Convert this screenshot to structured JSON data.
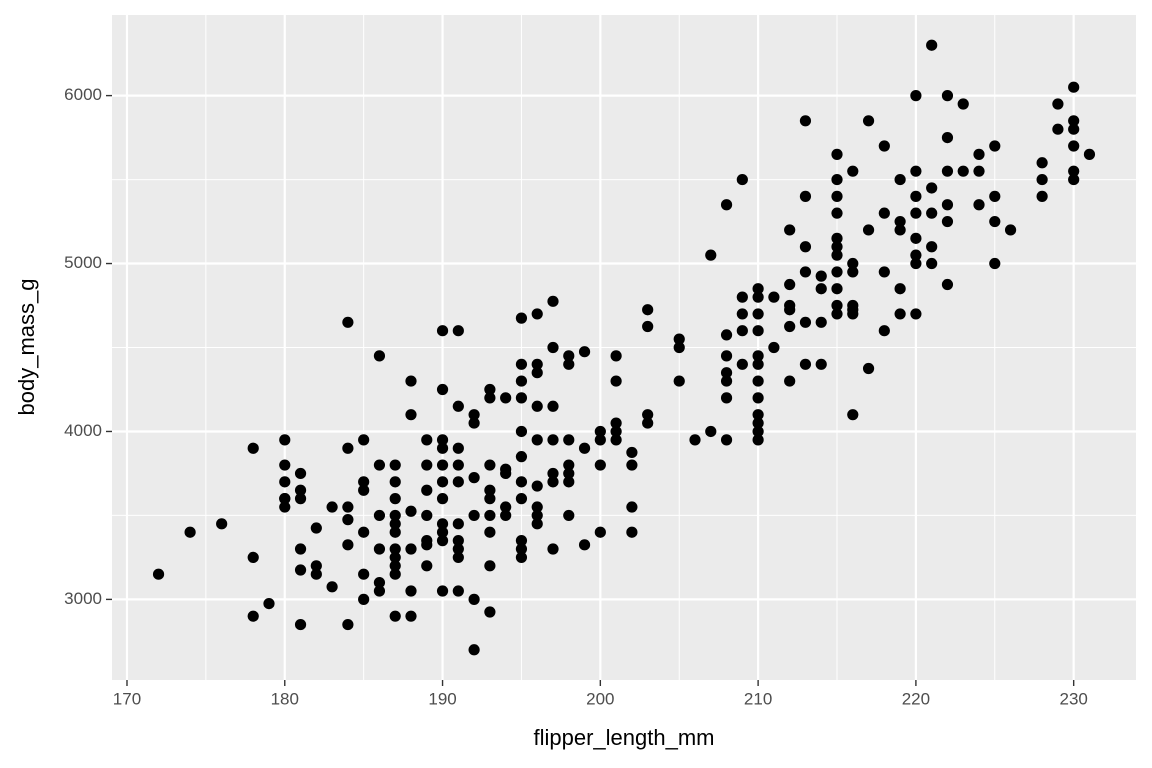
{
  "chart_data": {
    "type": "scatter",
    "xlabel": "flipper_length_mm",
    "ylabel": "body_mass_g",
    "xlim": [
      169.05,
      233.95
    ],
    "ylim": [
      2520,
      6480
    ],
    "xticks": [
      170,
      180,
      190,
      200,
      210,
      220,
      230
    ],
    "yticks": [
      3000,
      4000,
      5000,
      6000
    ],
    "xminor": [
      175,
      185,
      195,
      205,
      215,
      225
    ],
    "yminor": [
      3500,
      4500,
      5500
    ],
    "grid": true,
    "color": "#000000",
    "background": "#ebebeb",
    "x": [
      172,
      174,
      176,
      178,
      178,
      178,
      179,
      180,
      180,
      180,
      180,
      180,
      180,
      181,
      181,
      181,
      181,
      181,
      181,
      182,
      182,
      182,
      183,
      183,
      184,
      184,
      184,
      184,
      184,
      184,
      185,
      185,
      185,
      185,
      185,
      185,
      186,
      186,
      186,
      186,
      186,
      186,
      187,
      187,
      187,
      187,
      187,
      187,
      187,
      187,
      187,
      187,
      187,
      188,
      188,
      188,
      188,
      188,
      188,
      189,
      189,
      189,
      189,
      189,
      189,
      189,
      190,
      190,
      190,
      190,
      190,
      190,
      190,
      190,
      190,
      190,
      190,
      191,
      191,
      191,
      191,
      191,
      191,
      191,
      191,
      191,
      191,
      192,
      192,
      192,
      192,
      192,
      192,
      193,
      193,
      193,
      193,
      193,
      193,
      193,
      193,
      193,
      194,
      194,
      194,
      194,
      194,
      195,
      195,
      195,
      195,
      195,
      195,
      195,
      195,
      195,
      195,
      195,
      196,
      196,
      196,
      196,
      196,
      196,
      196,
      196,
      196,
      197,
      197,
      197,
      197,
      197,
      197,
      197,
      198,
      198,
      198,
      198,
      198,
      198,
      198,
      199,
      199,
      199,
      200,
      200,
      200,
      200,
      201,
      201,
      201,
      201,
      201,
      202,
      202,
      202,
      202,
      203,
      203,
      203,
      203,
      205,
      205,
      205,
      206,
      207,
      207,
      208,
      208,
      208,
      208,
      208,
      208,
      208,
      209,
      209,
      209,
      209,
      209,
      210,
      210,
      210,
      210,
      210,
      210,
      210,
      210,
      210,
      210,
      210,
      210,
      211,
      211,
      212,
      212,
      212,
      212,
      212,
      212,
      213,
      213,
      213,
      213,
      213,
      213,
      214,
      214,
      214,
      214,
      215,
      215,
      215,
      215,
      215,
      215,
      215,
      215,
      215,
      215,
      215,
      216,
      216,
      216,
      216,
      216,
      216,
      216,
      217,
      217,
      217,
      218,
      218,
      218,
      218,
      219,
      219,
      219,
      219,
      219,
      220,
      220,
      220,
      220,
      220,
      220,
      220,
      220,
      221,
      221,
      221,
      221,
      221,
      222,
      222,
      222,
      222,
      222,
      222,
      223,
      223,
      224,
      224,
      224,
      225,
      225,
      225,
      225,
      226,
      228,
      228,
      228,
      229,
      229,
      230,
      230,
      230,
      230,
      230,
      230,
      231
    ],
    "values": [
      3150,
      3400,
      3450,
      3900,
      3250,
      2900,
      2975,
      3950,
      3800,
      3700,
      3600,
      3550,
      3600,
      3750,
      3650,
      3600,
      3300,
      3175,
      2850,
      3425,
      3200,
      3150,
      3075,
      3550,
      4650,
      3900,
      3550,
      3475,
      3325,
      2850,
      3950,
      3700,
      3650,
      3400,
      3150,
      3000,
      4450,
      3800,
      3500,
      3300,
      3100,
      3050,
      3800,
      3700,
      3600,
      3500,
      3450,
      3400,
      3300,
      3250,
      3200,
      3150,
      2900,
      4300,
      4100,
      3525,
      3300,
      3050,
      2900,
      3950,
      3800,
      3650,
      3500,
      3350,
      3325,
      3200,
      4600,
      4250,
      3950,
      3900,
      3800,
      3700,
      3600,
      3450,
      3400,
      3350,
      3050,
      4600,
      4150,
      3900,
      3800,
      3700,
      3450,
      3350,
      3300,
      3250,
      3050,
      4100,
      4050,
      3725,
      3500,
      3000,
      2700,
      4250,
      4200,
      3800,
      3650,
      3600,
      3500,
      3400,
      3200,
      2925,
      4200,
      3775,
      3750,
      3550,
      3500,
      4675,
      4400,
      4300,
      4200,
      4000,
      3850,
      3700,
      3600,
      3350,
      3300,
      3250,
      4700,
      4400,
      4350,
      4150,
      3950,
      3675,
      3550,
      3500,
      3450,
      4775,
      4500,
      4150,
      3950,
      3750,
      3700,
      3300,
      4450,
      4400,
      3950,
      3800,
      3750,
      3700,
      3500,
      4475,
      3900,
      3325,
      4000,
      3950,
      3800,
      3400,
      4450,
      4300,
      4050,
      4000,
      3950,
      3875,
      3800,
      3550,
      3400,
      4725,
      4625,
      4100,
      4050,
      4550,
      4500,
      4300,
      3950,
      5050,
      4000,
      5350,
      4575,
      4450,
      4350,
      4300,
      4200,
      3950,
      5500,
      4800,
      4700,
      4600,
      4400,
      4850,
      4800,
      4700,
      4600,
      4450,
      4400,
      4300,
      4200,
      4100,
      4050,
      4000,
      3950,
      4800,
      4500,
      5200,
      4875,
      4750,
      4725,
      4625,
      4300,
      5850,
      5400,
      5100,
      4950,
      4650,
      4400,
      4925,
      4850,
      4650,
      4400,
      5650,
      5500,
      5400,
      5300,
      5150,
      5100,
      5050,
      4950,
      4850,
      4750,
      4700,
      5550,
      5000,
      4950,
      4750,
      4725,
      4700,
      4100,
      5850,
      5200,
      4375,
      5700,
      5300,
      4950,
      4600,
      5500,
      5250,
      5200,
      4850,
      4700,
      6000,
      5550,
      5400,
      5300,
      5150,
      5050,
      5000,
      4700,
      6300,
      5450,
      5300,
      5100,
      5000,
      6000,
      5750,
      5550,
      5350,
      5250,
      4875,
      5950,
      5550,
      5650,
      5550,
      5350,
      5700,
      5400,
      5250,
      5000,
      5200,
      5600,
      5500,
      5400,
      5950,
      5800,
      6050,
      5850,
      5800,
      5700,
      5550,
      5500,
      5650
    ]
  }
}
